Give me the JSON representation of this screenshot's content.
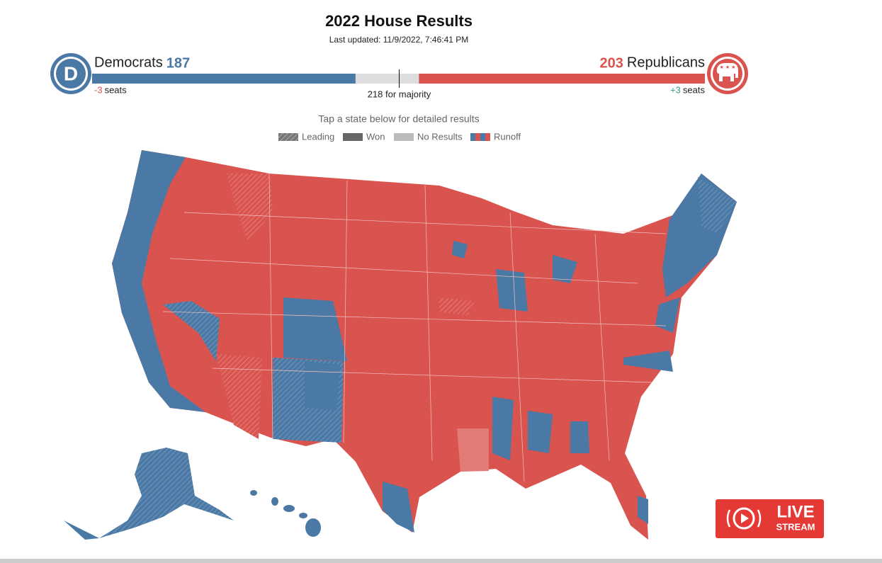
{
  "header": {
    "title": "2022 House Results",
    "updated": "Last updated: 11/9/2022, 7:46:41 PM"
  },
  "seats": {
    "xlim": [
      0,
      435
    ],
    "democrats": {
      "name": "Democrats",
      "seats": 187,
      "change": "-3",
      "unit": "seats",
      "color": "#4b79a5",
      "logo": "D"
    },
    "republicans": {
      "name": "Republicans",
      "seats": 203,
      "change": "+3",
      "unit": "seats",
      "color": "#d9534f"
    },
    "majority": {
      "value": 218,
      "label": "218 for majority"
    }
  },
  "map": {
    "instruction": "Tap a state below for detailed results",
    "legend": [
      "Leading",
      "Won",
      "No Results",
      "Runoff"
    ]
  },
  "live": {
    "line1": "LIVE",
    "line2": "STREAM"
  }
}
